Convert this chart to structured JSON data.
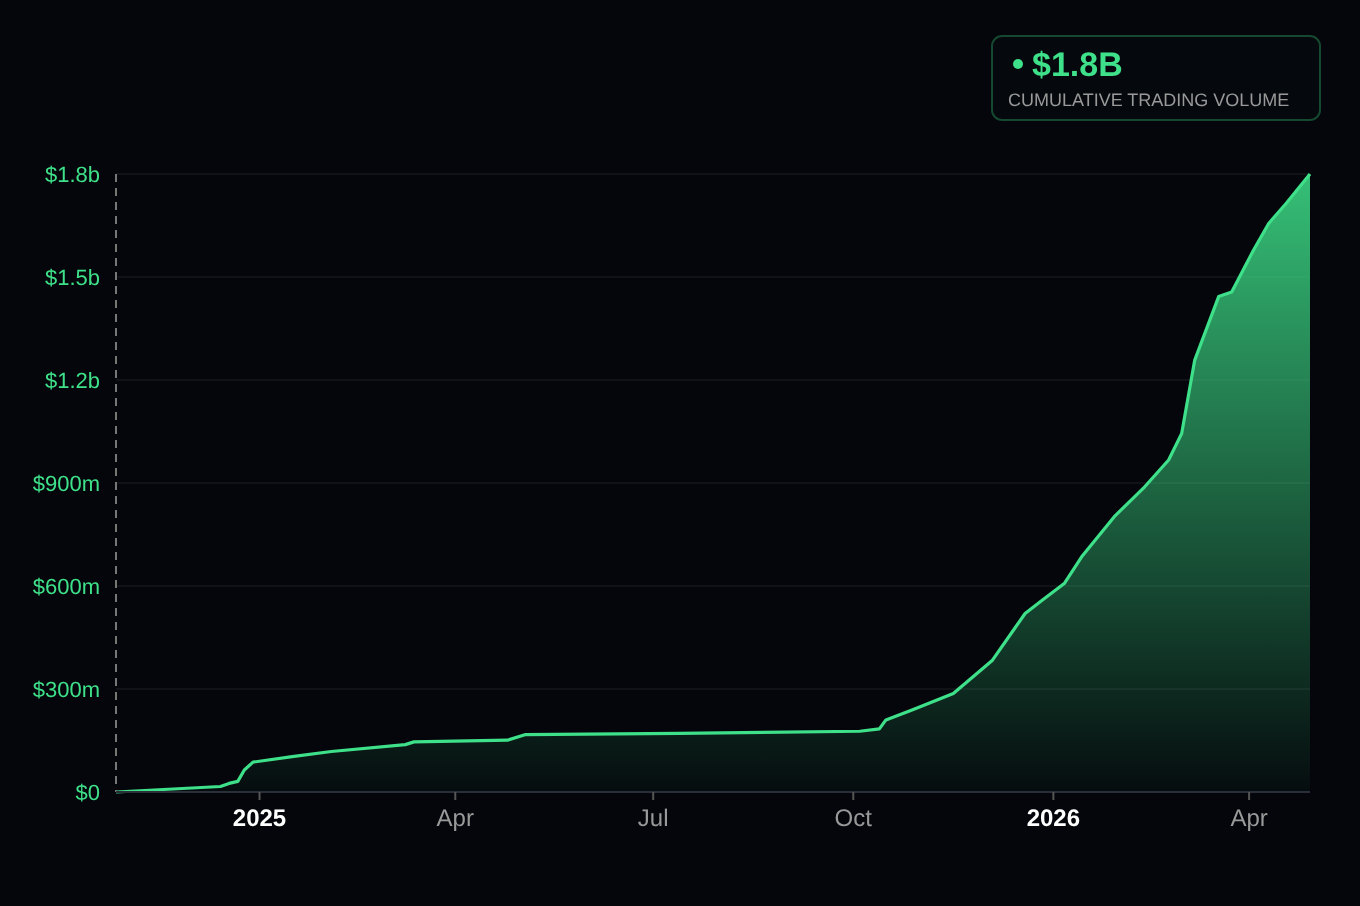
{
  "chart_data": {
    "type": "area",
    "annotations": [
      "$1.8B",
      "CUMULATIVE TRADING VOLUME"
    ],
    "x": [
      "2024-10-27",
      "2024-12-14",
      "2024-12-18",
      "2024-12-22",
      "2024-12-25",
      "2024-12-29",
      "2025-01-16",
      "2025-02-03",
      "2025-03-09",
      "2025-03-13",
      "2025-04-25",
      "2025-05-03",
      "2025-07-13",
      "2025-10-04",
      "2025-10-13",
      "2025-10-16",
      "2025-10-28",
      "2025-11-16",
      "2025-12-04",
      "2025-12-19",
      "2025-12-27",
      "2026-01-06",
      "2026-01-14",
      "2026-01-29",
      "2026-02-12",
      "2026-02-23",
      "2026-03-01",
      "2026-03-07",
      "2026-03-18",
      "2026-03-24",
      "2026-04-03",
      "2026-04-10",
      "2026-04-18",
      "2026-04-29"
    ],
    "series": [
      {
        "color": "#3ee089",
        "values": [
          0,
          16000000,
          25000000,
          31000000,
          64000000,
          87000000,
          103000000,
          118000000,
          138000000,
          146000000,
          151000000,
          167000000,
          171000000,
          177000000,
          184000000,
          210000000,
          239000000,
          287000000,
          384000000,
          520000000,
          559000000,
          607000000,
          685000000,
          802000000,
          889000000,
          967000000,
          1044000000,
          1258000000,
          1443000000,
          1456000000,
          1578000000,
          1656000000,
          1714000000,
          1800000000
        ]
      }
    ],
    "xlim": [
      "2024-10-27",
      "2026-04-29"
    ],
    "xticks": [
      {
        "value": "2025-01-01",
        "label": "2025"
      },
      {
        "value": "2025-04-01",
        "label": "Apr"
      },
      {
        "value": "2025-07-01",
        "label": "Jul"
      },
      {
        "value": "2025-10-01",
        "label": "Oct"
      },
      {
        "value": "2026-01-01",
        "label": "2026"
      },
      {
        "value": "2026-04-01",
        "label": "Apr"
      }
    ],
    "ylim": [
      0,
      1800000000
    ],
    "yticks": [
      {
        "value": 0,
        "label": "$0"
      },
      {
        "value": 300000000,
        "label": "$300m"
      },
      {
        "value": 600000000,
        "label": "$600m"
      },
      {
        "value": 900000000,
        "label": "$900m"
      },
      {
        "value": 1200000000,
        "label": "$1.2b"
      },
      {
        "value": 1500000000,
        "label": "$1.5b"
      },
      {
        "value": 1800000000,
        "label": "$1.8b"
      }
    ],
    "grid": "y",
    "marker": "none",
    "line_style": "solid"
  }
}
